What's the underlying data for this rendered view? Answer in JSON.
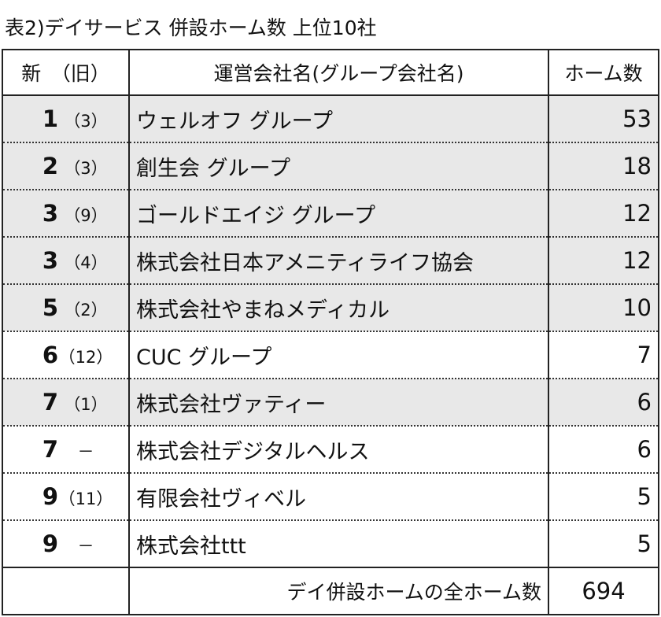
{
  "title": "表2)デイサービス 併設ホーム数 上位10社",
  "headers": {
    "rank": "新　（旧）",
    "company": "運営会社名(グループ会社名)",
    "homes": "ホーム数"
  },
  "rows": [
    {
      "rank": "1",
      "old": "（3）",
      "name": "ウェルオフ グループ",
      "homes": "53",
      "shaded": true
    },
    {
      "rank": "2",
      "old": "（3）",
      "name": "創生会 グループ",
      "homes": "18",
      "shaded": true
    },
    {
      "rank": "3",
      "old": "（9）",
      "name": "ゴールドエイジ グループ",
      "homes": "12",
      "shaded": true
    },
    {
      "rank": "3",
      "old": "（4）",
      "name": "株式会社日本アメニティライフ協会",
      "homes": "12",
      "shaded": true
    },
    {
      "rank": "5",
      "old": "（2）",
      "name": "株式会社やまねメディカル",
      "homes": "10",
      "shaded": true
    },
    {
      "rank": "6",
      "old": "（12）",
      "name": "CUC グループ",
      "homes": "7",
      "shaded": false
    },
    {
      "rank": "7",
      "old": "（1）",
      "name": "株式会社ヴァティー",
      "homes": "6",
      "shaded": true
    },
    {
      "rank": "7",
      "old": "－",
      "name": "株式会社デジタルヘルス",
      "homes": "6",
      "shaded": false
    },
    {
      "rank": "9",
      "old": "（11）",
      "name": "有限会社ヴィベル",
      "homes": "5",
      "shaded": false
    },
    {
      "rank": "9",
      "old": "－",
      "name": "株式会社ttt",
      "homes": "5",
      "shaded": false
    }
  ],
  "footer": {
    "label": "デイ併設ホームの全ホーム数",
    "value": "694"
  }
}
